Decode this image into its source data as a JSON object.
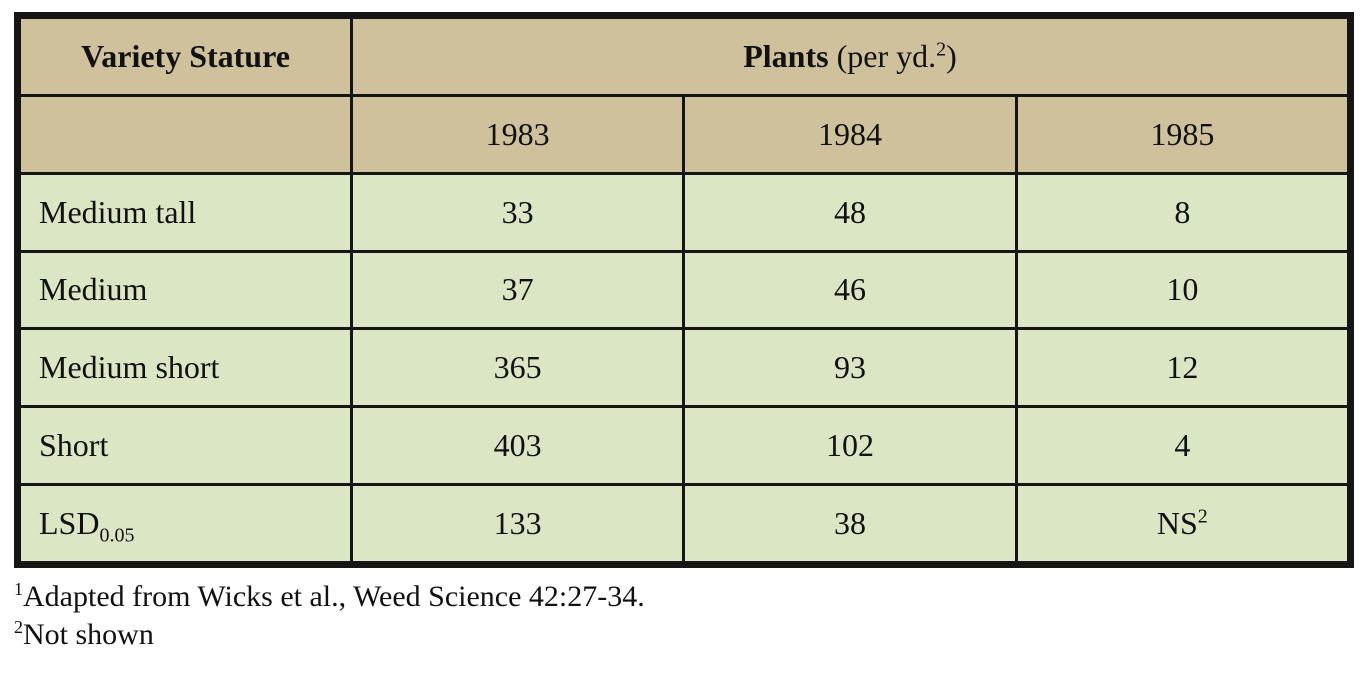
{
  "table": {
    "header": {
      "variety_label": "Variety Stature",
      "plants_label": "Plants",
      "plants_unit_open": "(per yd.",
      "plants_unit_sup": "2",
      "plants_unit_close": ")"
    },
    "years": [
      "1983",
      "1984",
      "1985"
    ],
    "rows": [
      {
        "label": "Medium tall",
        "values": [
          "33",
          "48",
          "8"
        ]
      },
      {
        "label": "Medium",
        "values": [
          "37",
          "46",
          "10"
        ]
      },
      {
        "label": "Medium short",
        "values": [
          "365",
          "93",
          "12"
        ]
      },
      {
        "label": "Short",
        "values": [
          "403",
          "102",
          "4"
        ]
      }
    ],
    "lsd": {
      "label_main": "LSD",
      "label_sub": "0.05",
      "values": [
        "133",
        "38",
        "NS"
      ],
      "last_value_sup": "2"
    }
  },
  "footnotes": [
    {
      "marker": "1",
      "text": "Adapted from Wicks et al., Weed Science 42:27-34."
    },
    {
      "marker": "2",
      "text": "Not shown"
    }
  ],
  "colors": {
    "header_bg": "#cfc19b",
    "body_bg": "#dbe6c5",
    "border": "#151515"
  }
}
